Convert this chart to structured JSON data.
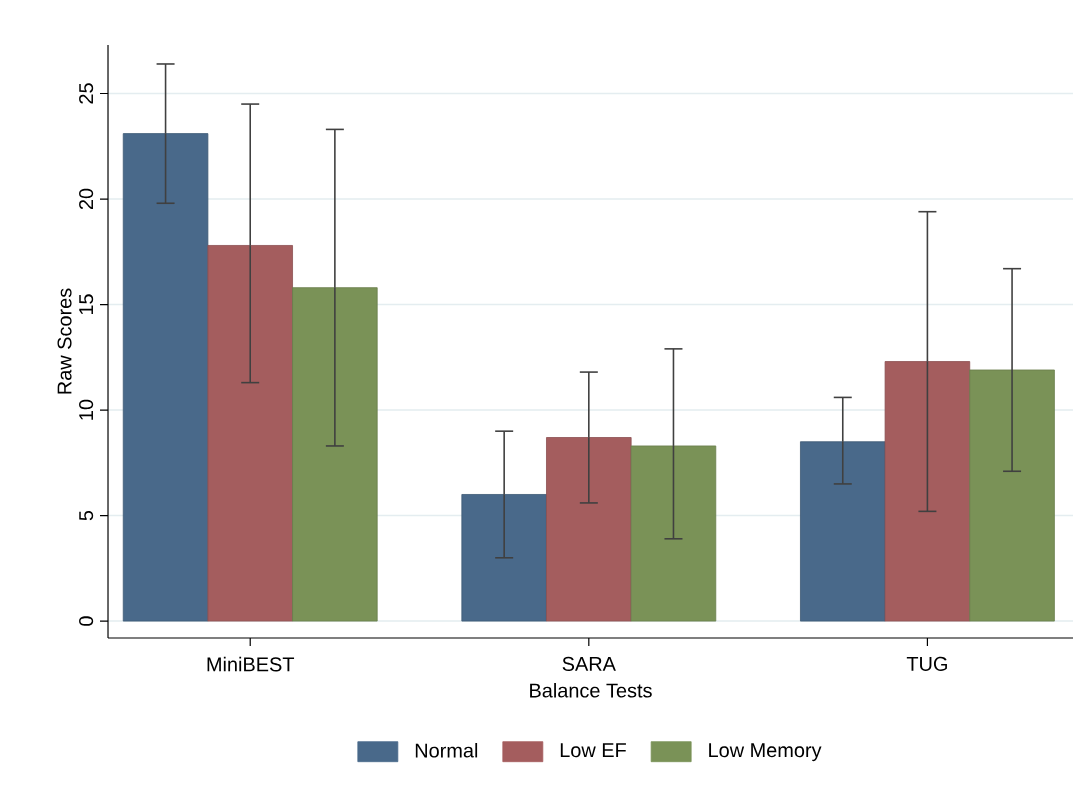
{
  "chart_data": {
    "type": "bar",
    "xlabel": "Balance Tests",
    "ylabel": "Raw Scores",
    "categories": [
      "MiniBEST",
      "SARA",
      "TUG"
    ],
    "series": [
      {
        "name": "Normal",
        "color": "#49698a",
        "values": [
          23.1,
          6.0,
          8.5
        ],
        "errors": [
          [
            19.8,
            26.4
          ],
          [
            3.0,
            9.0
          ],
          [
            6.5,
            10.6
          ]
        ]
      },
      {
        "name": "Low EF",
        "color": "#a45d5e",
        "values": [
          17.8,
          8.7,
          12.3
        ],
        "errors": [
          [
            11.3,
            24.5
          ],
          [
            5.6,
            11.8
          ],
          [
            5.2,
            19.4
          ]
        ]
      },
      {
        "name": "Low Memory",
        "color": "#7a9257",
        "values": [
          15.8,
          8.3,
          11.9
        ],
        "errors": [
          [
            8.3,
            23.3
          ],
          [
            3.9,
            12.9
          ],
          [
            7.1,
            16.7
          ]
        ]
      }
    ],
    "ylim": [
      -0.8,
      27.3
    ],
    "yticks": [
      0,
      5,
      10,
      15,
      20,
      25
    ],
    "grid": "y",
    "legend": "bottom"
  }
}
